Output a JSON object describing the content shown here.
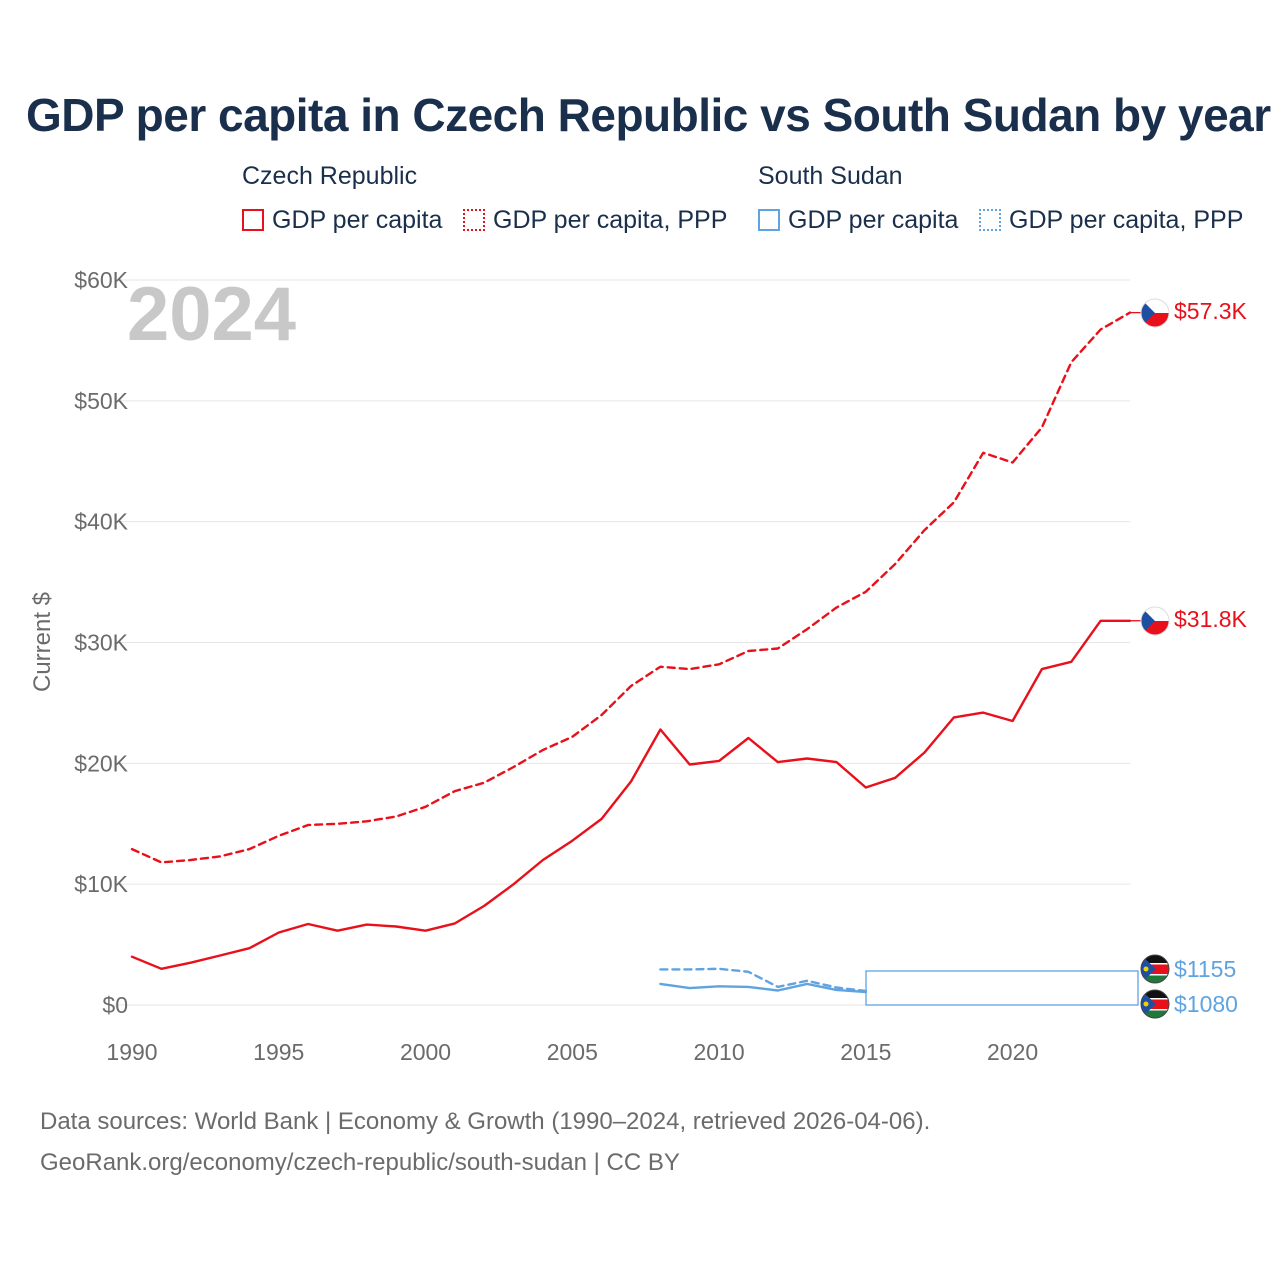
{
  "title": "GDP per capita in Czech Republic vs South Sudan by year",
  "legend": {
    "groups": [
      {
        "country": "Czech Republic",
        "color": "#e8101a",
        "items": [
          {
            "label": "GDP per capita",
            "style": "solid"
          },
          {
            "label": "GDP per capita, PPP",
            "style": "dotted"
          }
        ]
      },
      {
        "country": "South Sudan",
        "color": "#5fa3e0",
        "items": [
          {
            "label": "GDP per capita",
            "style": "solid"
          },
          {
            "label": "GDP per capita, PPP",
            "style": "dotted"
          }
        ]
      }
    ]
  },
  "year_label": "2024",
  "footer": {
    "line1": "Data sources: World Bank | Economy & Growth (1990–2024, retrieved 2026-04-06).",
    "line2": "GeoRank.org/economy/czech-republic/south-sudan | CC BY"
  },
  "chart_data": {
    "type": "line",
    "title": "GDP per capita in Czech Republic vs South Sudan by year",
    "xlabel": "",
    "ylabel": "Current $",
    "xlim": [
      1990,
      2024
    ],
    "ylim": [
      0,
      60000
    ],
    "x_ticks": [
      1990,
      1995,
      2000,
      2005,
      2010,
      2015,
      2020
    ],
    "x_tick_labels": [
      "1990",
      "1995",
      "2000",
      "2005",
      "2010",
      "2015",
      "2020"
    ],
    "y_ticks": [
      0,
      10000,
      20000,
      30000,
      40000,
      50000,
      60000
    ],
    "y_tick_labels": [
      "$0",
      "$10K",
      "$20K",
      "$30K",
      "$40K",
      "$50K",
      "$60K"
    ],
    "grid": true,
    "series": [
      {
        "name": "Czech Republic GDP per capita, PPP",
        "country": "Czech Republic",
        "metric": "GDP per capita, PPP",
        "color": "#e8101a",
        "dash": true,
        "end_label": "$57.3K",
        "x": [
          1990,
          1991,
          1992,
          1993,
          1994,
          1995,
          1996,
          1997,
          1998,
          1999,
          2000,
          2001,
          2002,
          2003,
          2004,
          2005,
          2006,
          2007,
          2008,
          2009,
          2010,
          2011,
          2012,
          2013,
          2014,
          2015,
          2016,
          2017,
          2018,
          2019,
          2020,
          2021,
          2022,
          2023,
          2024
        ],
        "values": [
          12900,
          11800,
          12000,
          12300,
          12900,
          14000,
          14900,
          15000,
          15200,
          15600,
          16400,
          17700,
          18400,
          19700,
          21100,
          22200,
          24000,
          26400,
          28000,
          27800,
          28200,
          29300,
          29500,
          31100,
          32900,
          34200,
          36500,
          39300,
          41600,
          45700,
          44900,
          47800,
          53200,
          55900,
          57300
        ]
      },
      {
        "name": "Czech Republic GDP per capita",
        "country": "Czech Republic",
        "metric": "GDP per capita",
        "color": "#e8101a",
        "dash": false,
        "end_label": "$31.8K",
        "x": [
          1990,
          1991,
          1992,
          1993,
          1994,
          1995,
          1996,
          1997,
          1998,
          1999,
          2000,
          2001,
          2002,
          2003,
          2004,
          2005,
          2006,
          2007,
          2008,
          2009,
          2010,
          2011,
          2012,
          2013,
          2014,
          2015,
          2016,
          2017,
          2018,
          2019,
          2020,
          2021,
          2022,
          2023,
          2024
        ],
        "values": [
          4000,
          3000,
          3500,
          4100,
          4700,
          6000,
          6700,
          6150,
          6650,
          6500,
          6150,
          6750,
          8200,
          10000,
          12000,
          13600,
          15400,
          18500,
          22800,
          19900,
          20200,
          22100,
          20100,
          20400,
          20100,
          18000,
          18800,
          20900,
          23800,
          24200,
          23500,
          27800,
          28400,
          31800,
          31800
        ]
      },
      {
        "name": "South Sudan GDP per capita, PPP",
        "country": "South Sudan",
        "metric": "GDP per capita, PPP",
        "color": "#5fa3e0",
        "dash": true,
        "end_label": "$1155",
        "x": [
          2008,
          2009,
          2010,
          2011,
          2012,
          2013,
          2014,
          2015
        ],
        "values": [
          2950,
          2950,
          3000,
          2750,
          1500,
          2000,
          1450,
          1155
        ]
      },
      {
        "name": "South Sudan GDP per capita",
        "country": "South Sudan",
        "metric": "GDP per capita",
        "color": "#5fa3e0",
        "dash": false,
        "end_label": "$1080",
        "x": [
          2008,
          2009,
          2010,
          2011,
          2012,
          2013,
          2014,
          2015
        ],
        "values": [
          1750,
          1400,
          1550,
          1500,
          1200,
          1750,
          1250,
          1080
        ]
      }
    ]
  }
}
